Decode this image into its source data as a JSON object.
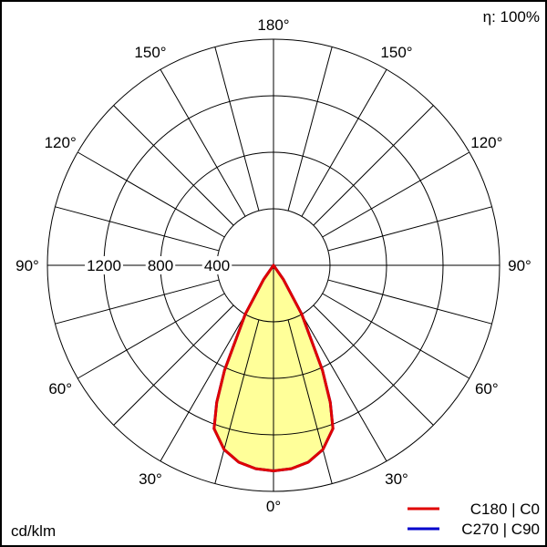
{
  "chart_data": {
    "type": "polar",
    "efficiency_label": "η: 100%",
    "unit": "cd/klm",
    "radial_ticks": [
      400,
      800,
      1200
    ],
    "rmax": 1600,
    "angle_labels": [
      "0°",
      "30°",
      "60°",
      "90°",
      "120°",
      "150°",
      "180°"
    ],
    "angle_values": [
      0,
      30,
      60,
      90,
      120,
      150,
      180
    ],
    "series": [
      {
        "name": "C270 | C90",
        "color": "#0000cc",
        "angles": [
          0,
          5,
          10,
          15,
          20,
          22.5,
          25,
          30,
          35,
          40
        ],
        "values": [
          1455,
          1445,
          1415,
          1350,
          1230,
          1050,
          820,
          400,
          120,
          0
        ]
      },
      {
        "name": "C180 | C0",
        "color": "#e00000",
        "fill": "#ffff99",
        "angles": [
          0,
          5,
          10,
          15,
          20,
          22.5,
          25,
          30,
          35,
          40
        ],
        "values": [
          1455,
          1445,
          1415,
          1350,
          1230,
          1050,
          820,
          400,
          120,
          0
        ]
      }
    ]
  }
}
